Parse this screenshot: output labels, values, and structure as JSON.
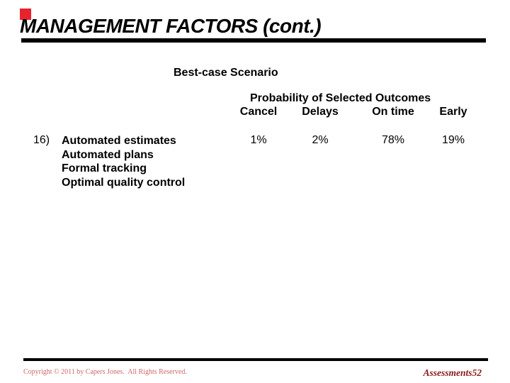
{
  "slide": {
    "title": "MANAGEMENT FACTORS (cont.)",
    "scenario_heading": "Best-case Scenario",
    "outcomes": {
      "heading": "Probability of Selected Outcomes",
      "columns": [
        "Cancel",
        "Delays",
        "On time",
        "Early"
      ]
    },
    "entry": {
      "number": "16)",
      "factors": [
        "Automated estimates",
        "Automated plans",
        "Formal tracking",
        "Optimal quality control"
      ],
      "probabilities": [
        "1%",
        "2%",
        "78%",
        "19%"
      ]
    },
    "footer": {
      "copyright": "Copyright © 2011 by Capers Jones.  All Rights Reserved.",
      "page_label": "Assessments52"
    },
    "colors": {
      "accent_square": "#e8232d",
      "rule": "#000000",
      "copyright_text": "#cc6666",
      "page_label_text": "#8b1a1a"
    }
  }
}
